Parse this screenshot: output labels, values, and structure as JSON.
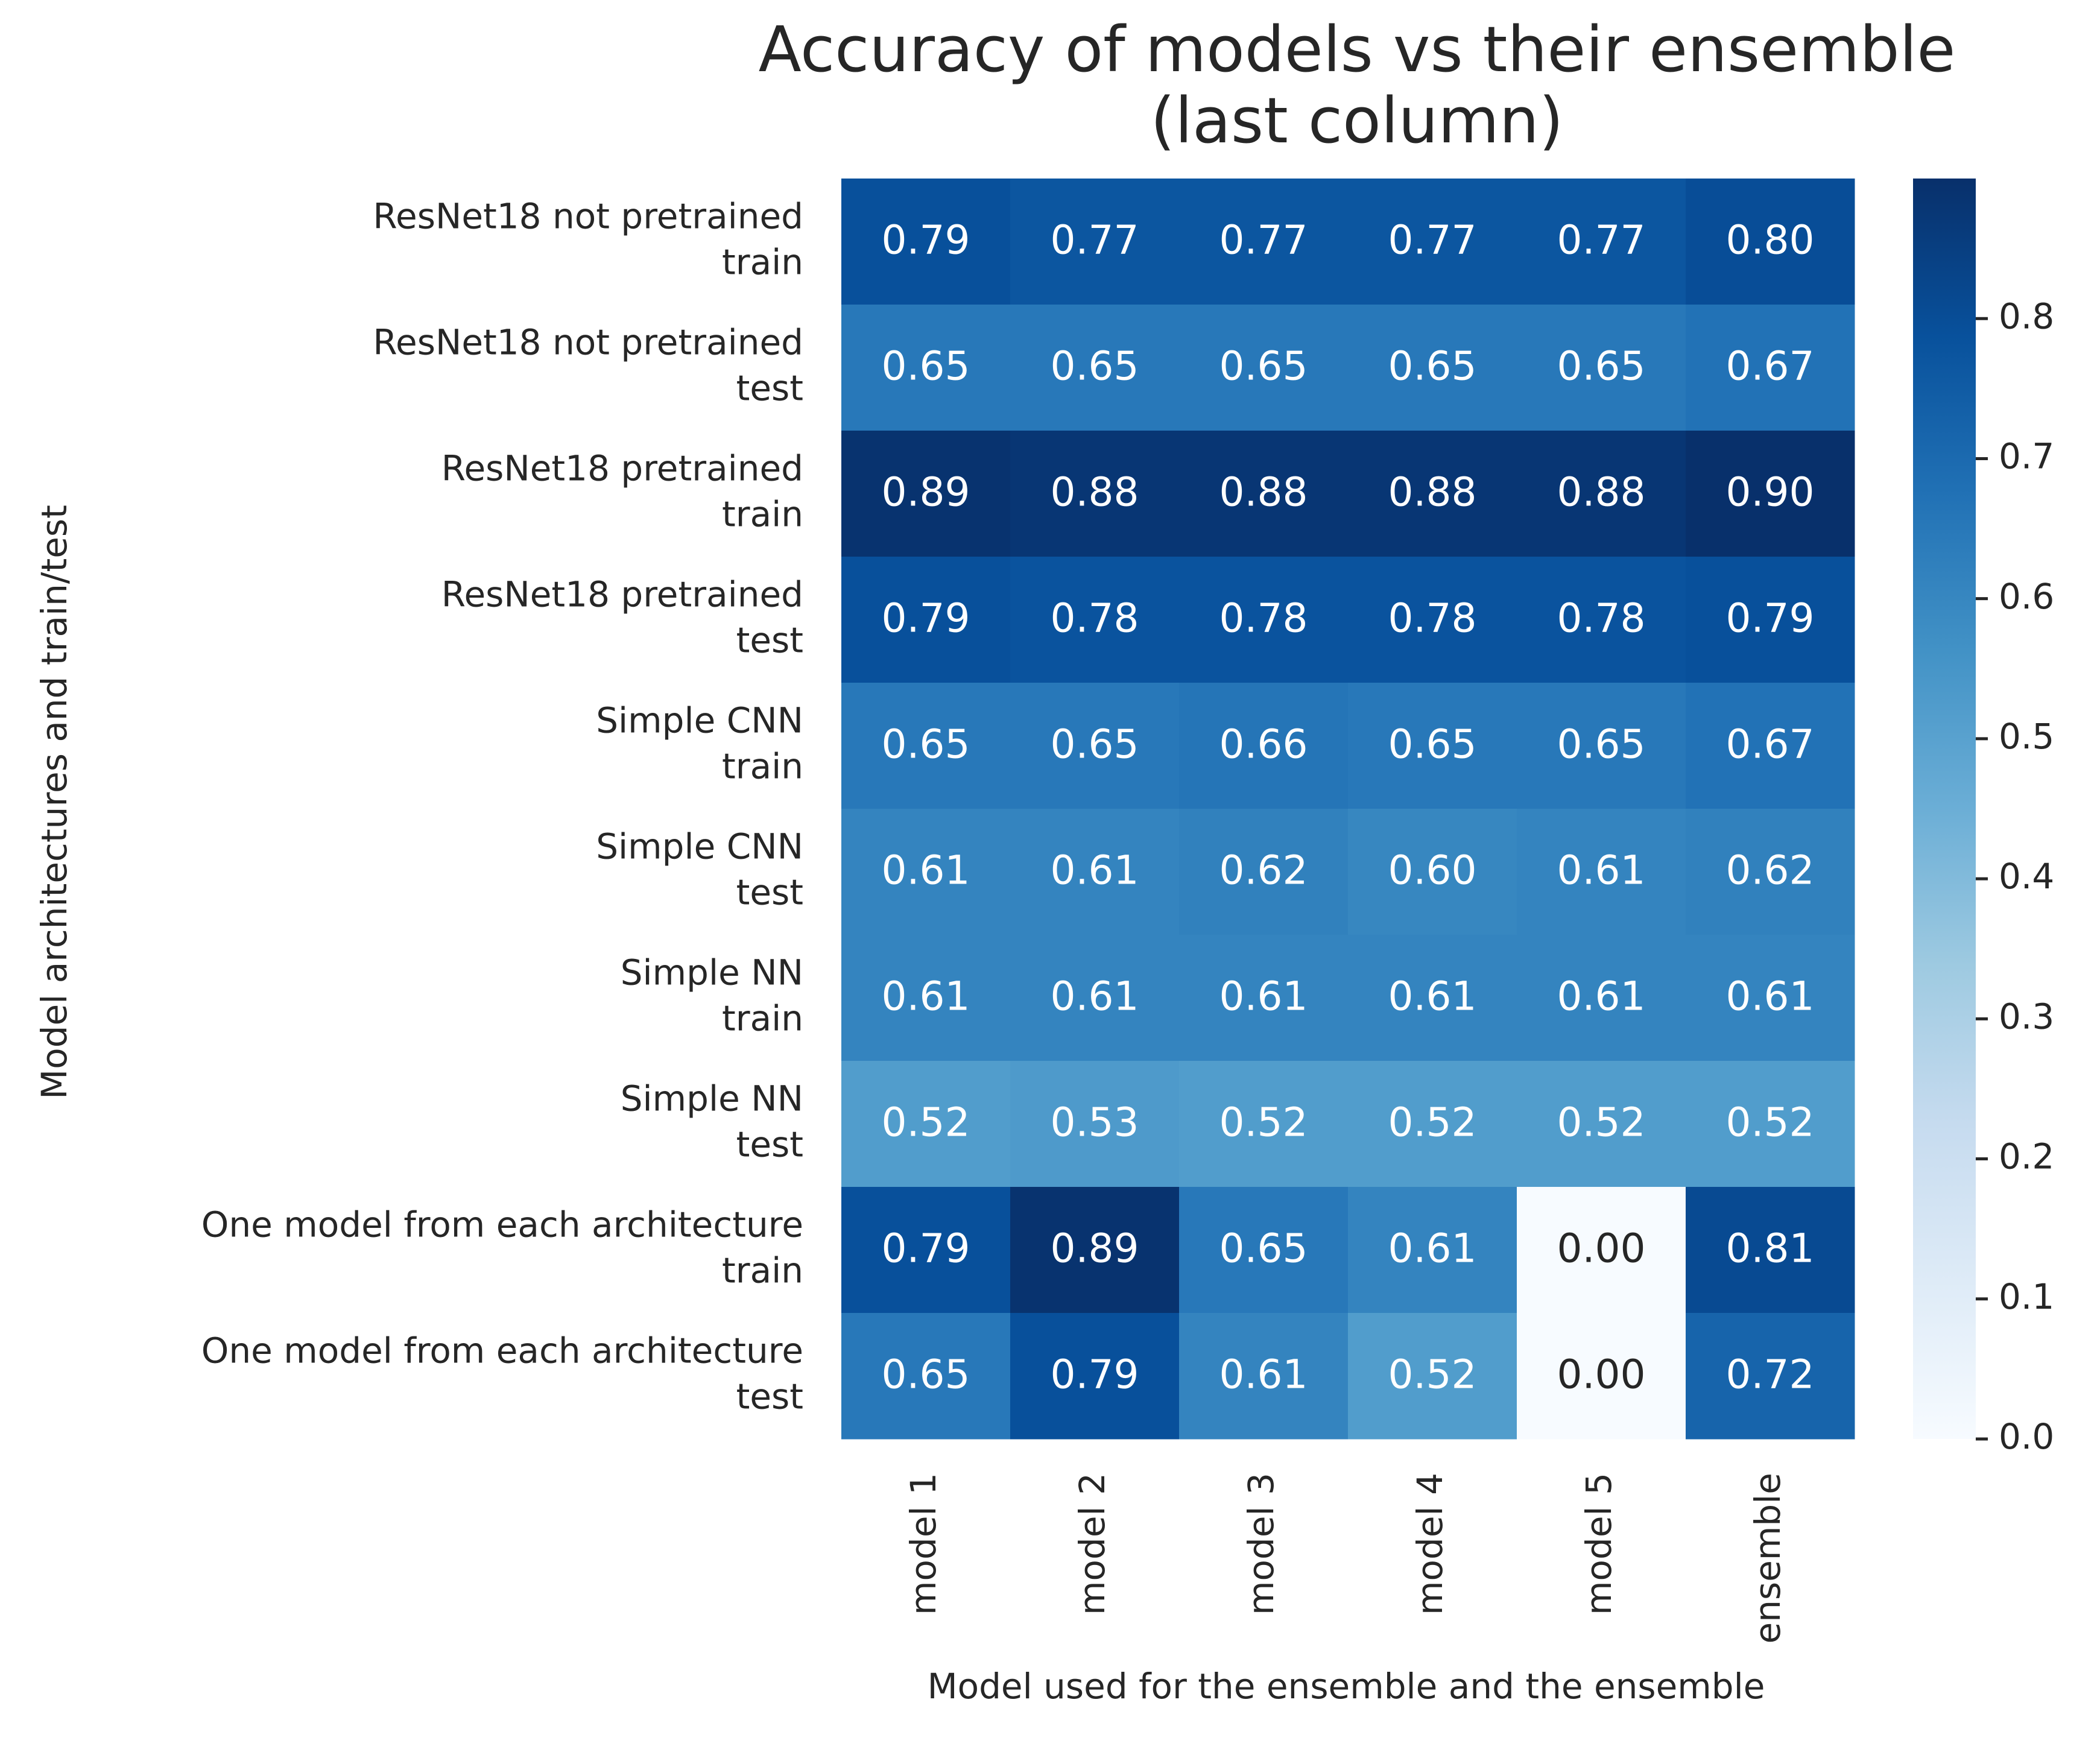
{
  "chart_data": {
    "type": "heatmap",
    "title_lines": [
      "Accuracy of models vs their ensemble",
      "(last column)"
    ],
    "xlabel": "Model used for the ensemble and the ensemble",
    "ylabel": "Model architectures and train/test",
    "columns": [
      "model 1",
      "model 2",
      "model 3",
      "model 4",
      "model 5",
      "ensemble"
    ],
    "rows": [
      {
        "label": [
          "ResNet18 not pretrained",
          "train"
        ]
      },
      {
        "label": [
          "ResNet18 not pretrained",
          "test"
        ]
      },
      {
        "label": [
          "ResNet18 pretrained",
          "train"
        ]
      },
      {
        "label": [
          "ResNet18 pretrained",
          "test"
        ]
      },
      {
        "label": [
          "Simple CNN",
          "train"
        ]
      },
      {
        "label": [
          "Simple CNN",
          "test"
        ]
      },
      {
        "label": [
          "Simple NN",
          "train"
        ]
      },
      {
        "label": [
          "Simple NN",
          "test"
        ]
      },
      {
        "label": [
          "One model from each architecture",
          "train"
        ]
      },
      {
        "label": [
          "One model from each architecture",
          "test"
        ]
      }
    ],
    "values": [
      [
        0.79,
        0.77,
        0.77,
        0.77,
        0.77,
        0.8
      ],
      [
        0.65,
        0.65,
        0.65,
        0.65,
        0.65,
        0.67
      ],
      [
        0.89,
        0.88,
        0.88,
        0.88,
        0.88,
        0.9
      ],
      [
        0.79,
        0.78,
        0.78,
        0.78,
        0.78,
        0.79
      ],
      [
        0.65,
        0.65,
        0.66,
        0.65,
        0.65,
        0.67
      ],
      [
        0.61,
        0.61,
        0.62,
        0.6,
        0.61,
        0.62
      ],
      [
        0.61,
        0.61,
        0.61,
        0.61,
        0.61,
        0.61
      ],
      [
        0.52,
        0.53,
        0.52,
        0.52,
        0.52,
        0.52
      ],
      [
        0.79,
        0.89,
        0.65,
        0.61,
        0.0,
        0.81
      ],
      [
        0.65,
        0.79,
        0.61,
        0.52,
        0.0,
        0.72
      ]
    ],
    "value_format": "2 decimals",
    "colormap": "Blues",
    "colormap_stops": [
      "#f7fbff",
      "#deebf7",
      "#c6dbef",
      "#9ecae1",
      "#6baed6",
      "#4292c6",
      "#2171b5",
      "#08519c",
      "#08306b"
    ],
    "colorbar": {
      "vmin": 0.0,
      "vmax": 0.9,
      "ticks": [
        0.0,
        0.1,
        0.2,
        0.3,
        0.4,
        0.5,
        0.6,
        0.7,
        0.8
      ],
      "tick_labels": [
        "0.0",
        "0.1",
        "0.2",
        "0.3",
        "0.4",
        "0.5",
        "0.6",
        "0.7",
        "0.8"
      ],
      "placement": "right"
    },
    "grid": false
  }
}
